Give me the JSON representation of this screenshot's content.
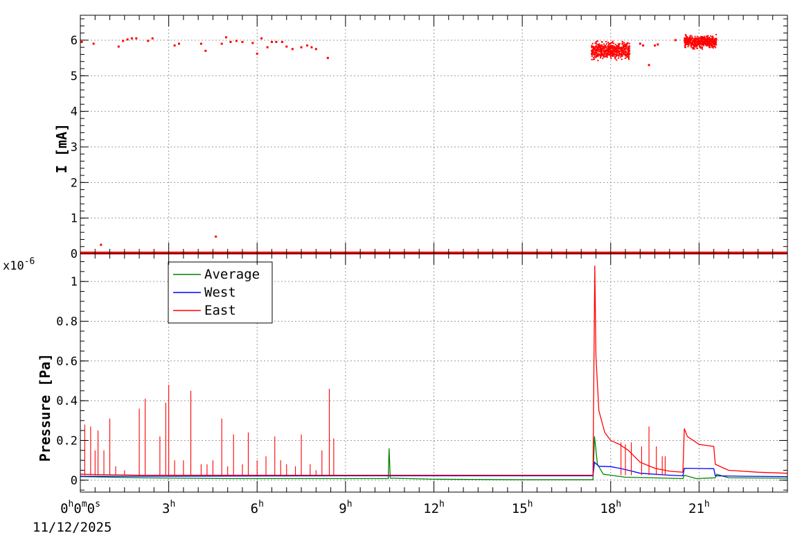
{
  "chart_data": [
    {
      "type": "scatter",
      "panel": "top",
      "ylabel": "I [mA]",
      "xlim_hours": [
        0,
        24
      ],
      "ylim": [
        0,
        6.7
      ],
      "yticks": [
        "0",
        "1",
        "2",
        "3",
        "4",
        "5",
        "6"
      ],
      "grid": true,
      "series": [
        {
          "color": "#ff0000",
          "points": [
            [
              0.05,
              5.95
            ],
            [
              0.45,
              5.9
            ],
            [
              0.7,
              0.25
            ],
            [
              1.3,
              5.82
            ],
            [
              1.45,
              5.98
            ],
            [
              1.6,
              6.02
            ],
            [
              1.75,
              6.05
            ],
            [
              1.9,
              6.05
            ],
            [
              2.3,
              5.98
            ],
            [
              2.45,
              6.05
            ],
            [
              3.2,
              5.85
            ],
            [
              3.35,
              5.9
            ],
            [
              4.1,
              5.9
            ],
            [
              4.25,
              5.7
            ],
            [
              4.6,
              0.48
            ],
            [
              4.8,
              5.9
            ],
            [
              4.95,
              6.08
            ],
            [
              5.1,
              5.95
            ],
            [
              5.3,
              5.98
            ],
            [
              5.5,
              5.95
            ],
            [
              5.85,
              5.92
            ],
            [
              6.0,
              5.62
            ],
            [
              6.15,
              6.05
            ],
            [
              6.35,
              5.8
            ],
            [
              6.5,
              5.95
            ],
            [
              6.65,
              5.95
            ],
            [
              6.85,
              5.95
            ],
            [
              7.0,
              5.82
            ],
            [
              7.2,
              5.75
            ],
            [
              7.5,
              5.8
            ],
            [
              7.7,
              5.85
            ],
            [
              7.85,
              5.8
            ],
            [
              8.0,
              5.75
            ],
            [
              8.4,
              5.5
            ],
            [
              17.8,
              5.7
            ],
            [
              19.0,
              5.9
            ],
            [
              19.1,
              5.85
            ],
            [
              19.3,
              5.3
            ],
            [
              19.5,
              5.85
            ],
            [
              19.6,
              5.88
            ],
            [
              20.2,
              6.0
            ]
          ],
          "dense_bands": [
            {
              "x_range": [
                17.35,
                18.65
              ],
              "y_mean": 5.72,
              "y_spread": 0.18
            },
            {
              "x_range": [
                20.5,
                21.6
              ],
              "y_mean": 5.95,
              "y_spread": 0.13
            }
          ],
          "baseline": {
            "y": 0.02,
            "x_range": [
              0,
              24
            ],
            "note": "continuous points near zero"
          }
        }
      ]
    },
    {
      "type": "line",
      "panel": "bottom",
      "ylabel": "Pressure [Pa]",
      "y_multiplier": "x10",
      "y_exponent": "-6",
      "xlim_hours": [
        0,
        24
      ],
      "ylim": [
        -0.06,
        1.14
      ],
      "yticks": [
        "0",
        "0.2",
        "0.4",
        "0.6",
        "0.8",
        "1"
      ],
      "grid": true,
      "legend_position": "top-left",
      "series": [
        {
          "name": "Average",
          "color": "#008000",
          "points": [
            [
              0,
              0.018
            ],
            [
              2,
              0.012
            ],
            [
              5,
              0.008
            ],
            [
              9,
              0.008
            ],
            [
              10.45,
              0.008
            ],
            [
              10.48,
              0.16
            ],
            [
              10.52,
              0.01
            ],
            [
              12,
              0.005
            ],
            [
              15,
              0.002
            ],
            [
              17.4,
              0.002
            ],
            [
              17.45,
              0.22
            ],
            [
              17.55,
              0.08
            ],
            [
              17.75,
              0.03
            ],
            [
              18.5,
              0.015
            ],
            [
              20.45,
              0.008
            ],
            [
              20.5,
              0.025
            ],
            [
              20.9,
              0.008
            ],
            [
              21.55,
              0.012
            ],
            [
              21.6,
              0.03
            ],
            [
              22,
              0.012
            ],
            [
              24,
              0.01
            ]
          ]
        },
        {
          "name": "West",
          "color": "#0000ff",
          "points": [
            [
              0,
              0.02
            ],
            [
              3,
              0.02
            ],
            [
              9,
              0.022
            ],
            [
              12,
              0.022
            ],
            [
              15,
              0.022
            ],
            [
              17.4,
              0.022
            ],
            [
              17.45,
              0.09
            ],
            [
              17.6,
              0.07
            ],
            [
              18.0,
              0.068
            ],
            [
              18.3,
              0.06
            ],
            [
              18.6,
              0.05
            ],
            [
              19.0,
              0.035
            ],
            [
              20.0,
              0.025
            ],
            [
              20.45,
              0.022
            ],
            [
              20.5,
              0.06
            ],
            [
              21.5,
              0.058
            ],
            [
              21.55,
              0.022
            ],
            [
              22.5,
              0.02
            ],
            [
              24,
              0.018
            ]
          ]
        },
        {
          "name": "East",
          "color": "#ff0000",
          "points": [
            [
              0,
              0.03
            ],
            [
              2,
              0.025
            ],
            [
              5,
              0.025
            ],
            [
              9,
              0.025
            ],
            [
              12,
              0.025
            ],
            [
              15,
              0.025
            ],
            [
              17.4,
              0.025
            ],
            [
              17.43,
              0.55
            ],
            [
              17.46,
              1.08
            ],
            [
              17.5,
              0.62
            ],
            [
              17.6,
              0.35
            ],
            [
              17.8,
              0.24
            ],
            [
              18.0,
              0.2
            ],
            [
              18.3,
              0.18
            ],
            [
              18.6,
              0.15
            ],
            [
              19.0,
              0.09
            ],
            [
              19.5,
              0.06
            ],
            [
              20.0,
              0.045
            ],
            [
              20.45,
              0.04
            ],
            [
              20.5,
              0.26
            ],
            [
              20.6,
              0.22
            ],
            [
              21.0,
              0.18
            ],
            [
              21.5,
              0.17
            ],
            [
              21.55,
              0.08
            ],
            [
              22.0,
              0.05
            ],
            [
              23.0,
              0.04
            ],
            [
              24,
              0.035
            ]
          ],
          "spikes": [
            [
              0.15,
              0.28
            ],
            [
              0.35,
              0.27
            ],
            [
              0.5,
              0.15
            ],
            [
              0.6,
              0.25
            ],
            [
              0.8,
              0.15
            ],
            [
              1.0,
              0.31
            ],
            [
              1.2,
              0.07
            ],
            [
              1.5,
              0.05
            ],
            [
              2.0,
              0.36
            ],
            [
              2.2,
              0.41
            ],
            [
              2.7,
              0.22
            ],
            [
              2.9,
              0.39
            ],
            [
              3.0,
              0.48
            ],
            [
              3.2,
              0.1
            ],
            [
              3.5,
              0.1
            ],
            [
              3.75,
              0.45
            ],
            [
              4.1,
              0.08
            ],
            [
              4.3,
              0.08
            ],
            [
              4.5,
              0.1
            ],
            [
              4.8,
              0.31
            ],
            [
              5.0,
              0.07
            ],
            [
              5.2,
              0.23
            ],
            [
              5.5,
              0.08
            ],
            [
              5.7,
              0.24
            ],
            [
              6.0,
              0.1
            ],
            [
              6.3,
              0.12
            ],
            [
              6.6,
              0.22
            ],
            [
              6.8,
              0.1
            ],
            [
              7.0,
              0.08
            ],
            [
              7.3,
              0.07
            ],
            [
              7.5,
              0.23
            ],
            [
              7.8,
              0.08
            ],
            [
              8.0,
              0.05
            ],
            [
              8.2,
              0.15
            ],
            [
              8.45,
              0.46
            ],
            [
              8.6,
              0.21
            ],
            [
              18.35,
              0.19
            ],
            [
              18.5,
              0.18
            ],
            [
              18.7,
              0.19
            ],
            [
              19.05,
              0.17
            ],
            [
              19.3,
              0.27
            ],
            [
              19.55,
              0.17
            ],
            [
              19.75,
              0.12
            ],
            [
              19.85,
              0.12
            ]
          ]
        }
      ]
    }
  ],
  "x_axis": {
    "tick_labels": [
      {
        "hours": 0,
        "text": "0h0m0s"
      },
      {
        "hours": 3,
        "text": "3h"
      },
      {
        "hours": 6,
        "text": "6h"
      },
      {
        "hours": 9,
        "text": "9h"
      },
      {
        "hours": 12,
        "text": "12h"
      },
      {
        "hours": 15,
        "text": "15h"
      },
      {
        "hours": 18,
        "text": "18h"
      },
      {
        "hours": 21,
        "text": "21h"
      }
    ],
    "date_label": "11/12/2025"
  },
  "legend": {
    "entries": [
      {
        "label": "Average",
        "color": "#008000"
      },
      {
        "label": "West",
        "color": "#0000ff"
      },
      {
        "label": "East",
        "color": "#ff0000"
      }
    ]
  }
}
